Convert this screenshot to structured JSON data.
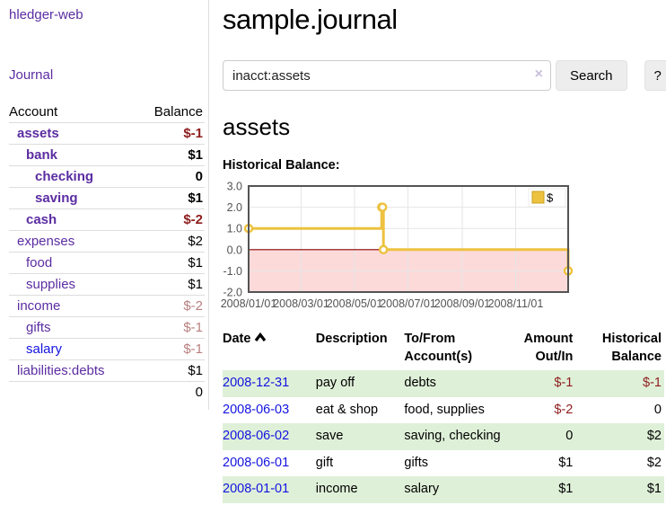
{
  "app": {
    "title": "hledger-web"
  },
  "sidebar": {
    "journal_link": "Journal",
    "accounts_table": {
      "headers": {
        "account": "Account",
        "balance": "Balance"
      },
      "rows": [
        {
          "name": "assets",
          "balance": "$-1"
        },
        {
          "name": "bank",
          "balance": "$1"
        },
        {
          "name": "checking",
          "balance": "0"
        },
        {
          "name": "saving",
          "balance": "$1"
        },
        {
          "name": "cash",
          "balance": "$-2"
        },
        {
          "name": "expenses",
          "balance": "$2"
        },
        {
          "name": "food",
          "balance": "$1"
        },
        {
          "name": "supplies",
          "balance": "$1"
        },
        {
          "name": "income",
          "balance": "$-2"
        },
        {
          "name": "gifts",
          "balance": "$-1"
        },
        {
          "name": "salary",
          "balance": "$-1"
        },
        {
          "name": "liabilities:debts",
          "balance": "$1"
        }
      ],
      "total": "0"
    }
  },
  "header": {
    "title": "sample.journal"
  },
  "search": {
    "value": "inacct:assets",
    "clear_icon": "×",
    "button_label": "Search",
    "help_label": "?"
  },
  "account_page": {
    "heading": "assets",
    "chart_label": "Historical Balance:"
  },
  "colors": {
    "accent_purple": "#5b2da2",
    "link_blue": "#1414e0",
    "negative_strong": "#8f1d1d",
    "negative_soft": "#b97f7f",
    "row_green": "#dff0d8"
  },
  "chart_data": {
    "type": "line",
    "title": "Historical Balance",
    "series": [
      {
        "name": "$",
        "color": "#EDC240",
        "style": "step",
        "points": [
          {
            "date": "2008-01-01",
            "value": 1
          },
          {
            "date": "2008-06-01",
            "value": 2
          },
          {
            "date": "2008-06-02",
            "value": 2
          },
          {
            "date": "2008-06-03",
            "value": 0
          },
          {
            "date": "2008-12-31",
            "value": -1
          }
        ]
      }
    ],
    "x_range": [
      "2008-01-01",
      "2008-12-31"
    ],
    "x_ticks": [
      "2008/01/01",
      "2008/03/01",
      "2008/05/01",
      "2008/07/01",
      "2008/09/01",
      "2008/11/01"
    ],
    "y_ticks": [
      "3.0",
      "2.0",
      "1.0",
      "0.0",
      "-1.0",
      "-2.0"
    ],
    "ylim": [
      -2,
      3
    ],
    "grid": true,
    "legend_position": "top-right",
    "grid_color": "#e6e6e6",
    "border_color": "#545454",
    "negative_region_color": "#fcdada",
    "zero_line_color": "#8b0000"
  },
  "register_table": {
    "headers": {
      "date": "Date",
      "description": "Description",
      "accounts": "To/From Account(s)",
      "amount": "Amount Out/In",
      "balance": "Historical Balance"
    },
    "rows": [
      {
        "date": "2008-12-31",
        "description": "pay off",
        "accounts": "debts",
        "amount": "$-1",
        "balance": "$-1"
      },
      {
        "date": "2008-06-03",
        "description": "eat & shop",
        "accounts": "food, supplies",
        "amount": "$-2",
        "balance": "0"
      },
      {
        "date": "2008-06-02",
        "description": "save",
        "accounts": "saving, checking",
        "amount": "0",
        "balance": "$2"
      },
      {
        "date": "2008-06-01",
        "description": "gift",
        "accounts": "gifts",
        "amount": "$1",
        "balance": "$2"
      },
      {
        "date": "2008-01-01",
        "description": "income",
        "accounts": "salary",
        "amount": "$1",
        "balance": "$1"
      }
    ]
  }
}
